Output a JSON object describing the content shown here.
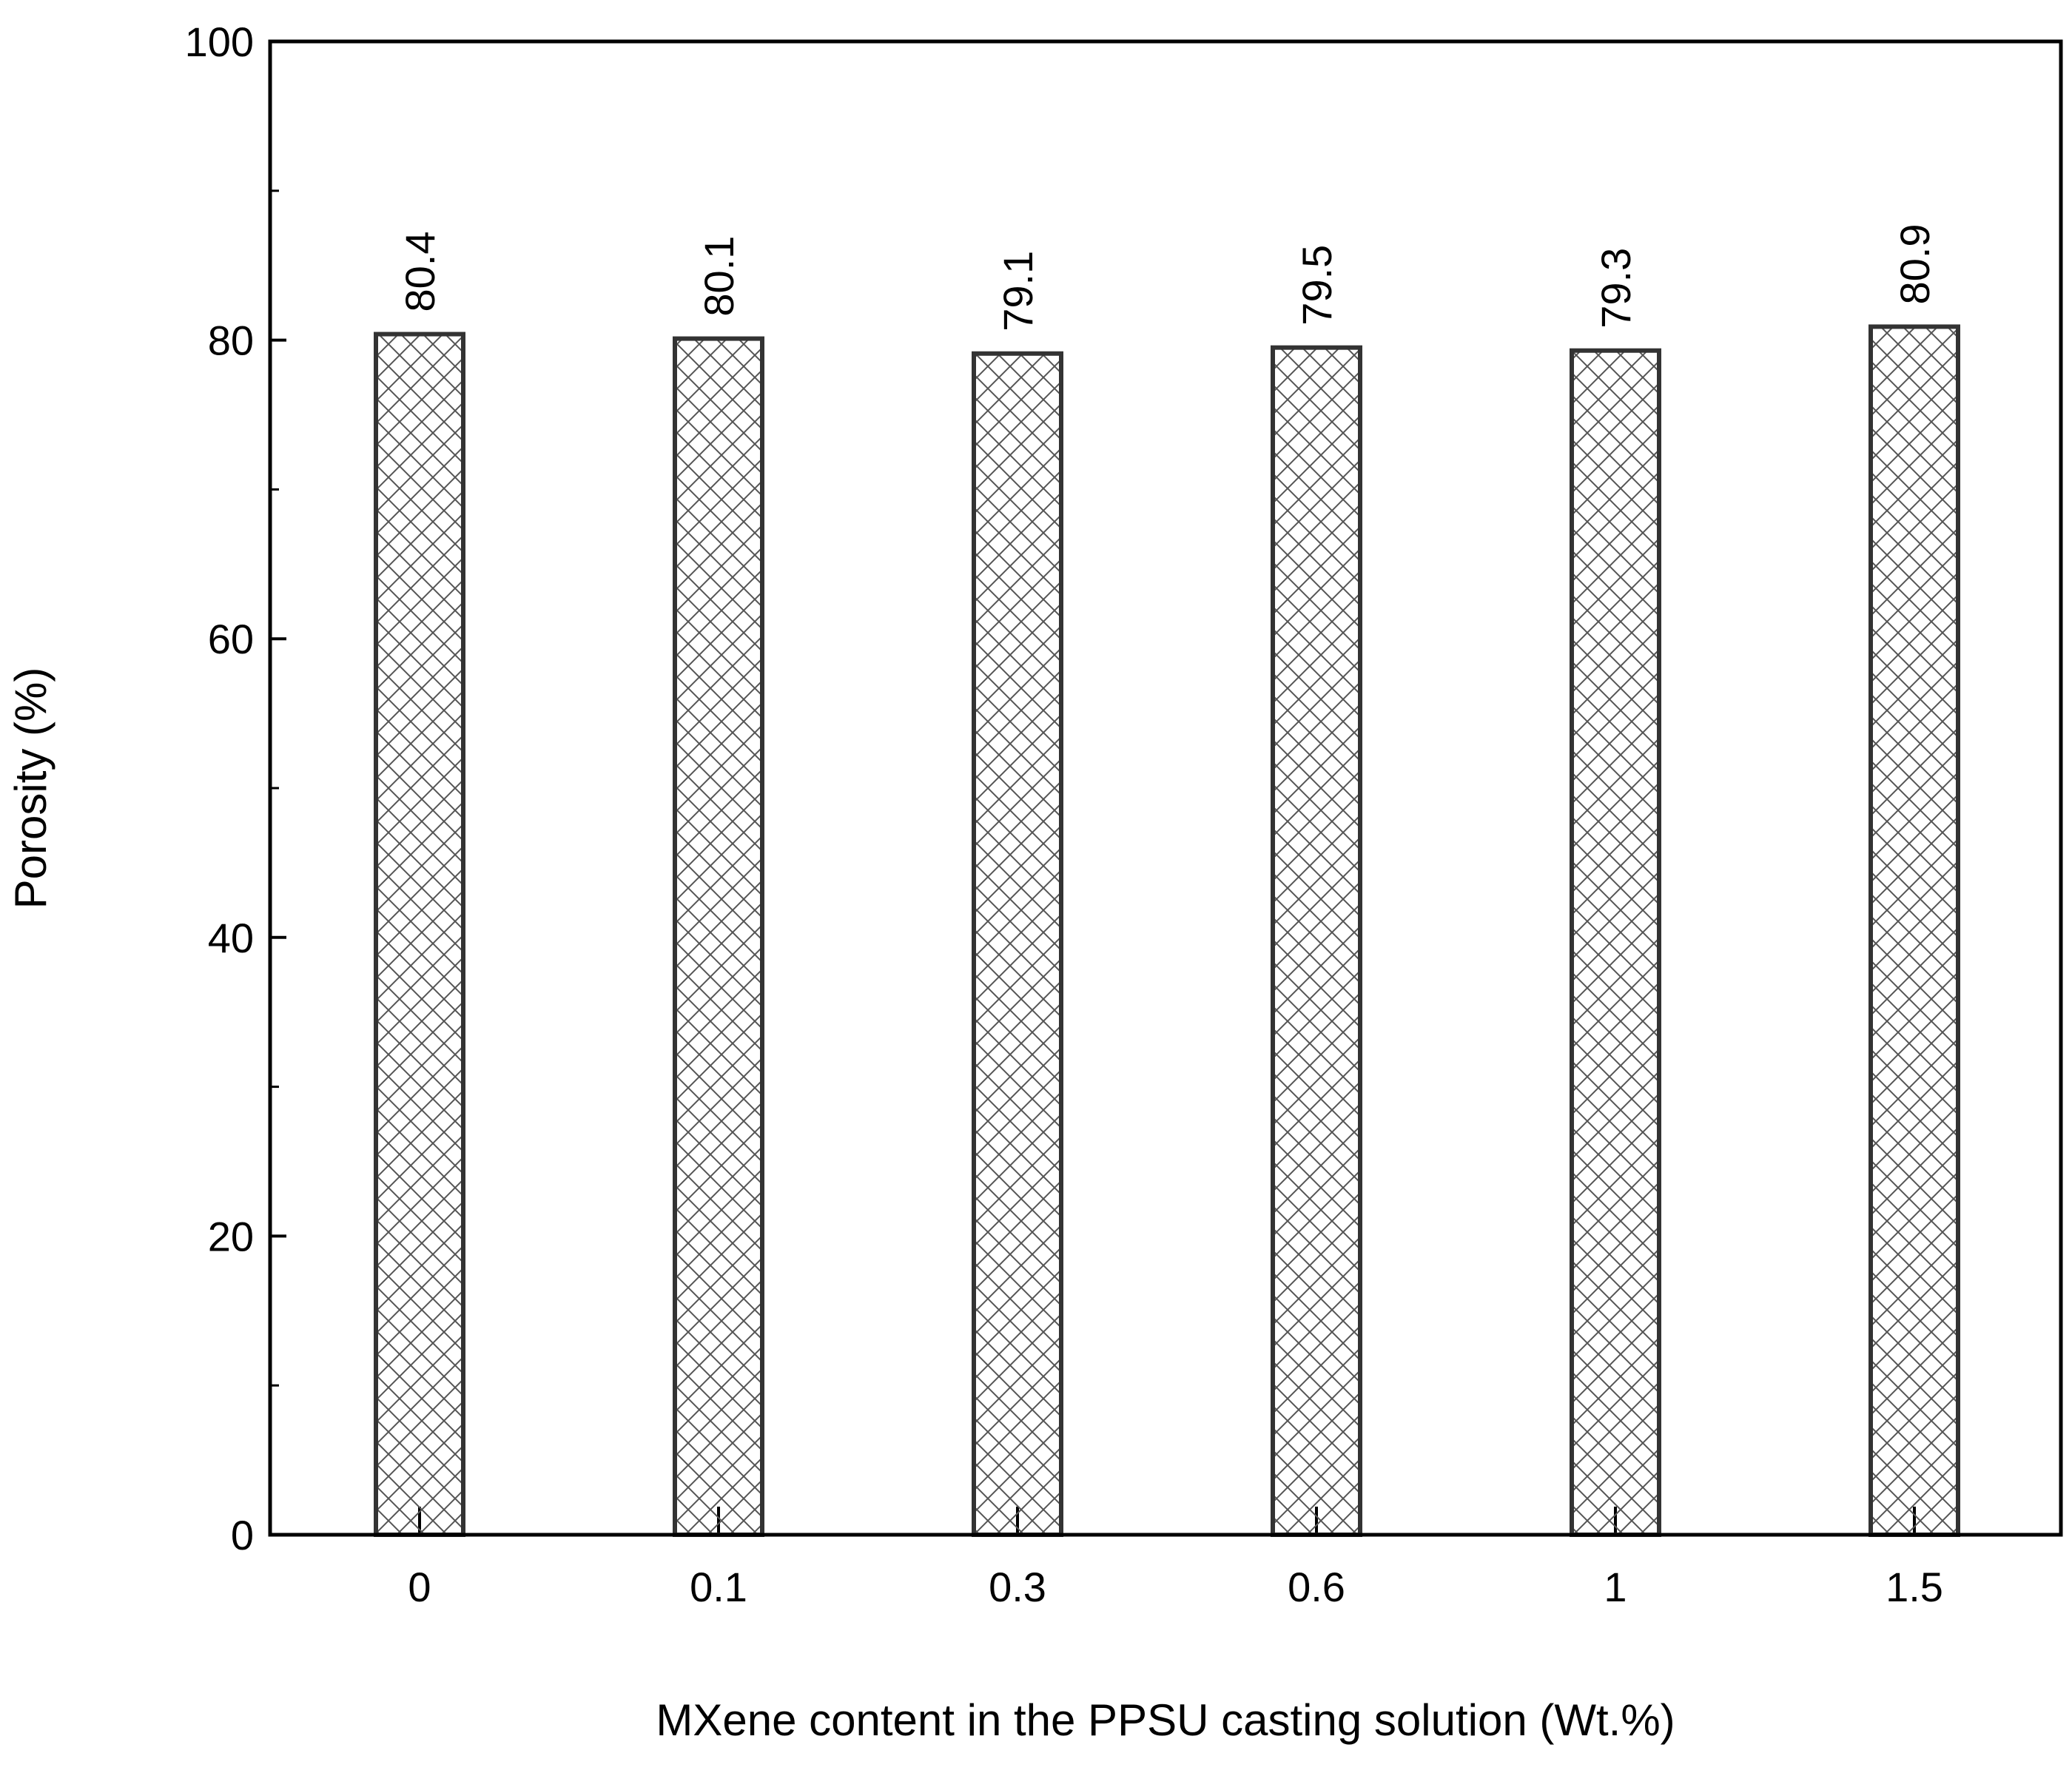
{
  "chart_data": {
    "type": "bar",
    "categories": [
      "0",
      "0.1",
      "0.3",
      "0.6",
      "1",
      "1.5"
    ],
    "values": [
      80.4,
      80.1,
      79.1,
      79.5,
      79.3,
      80.9
    ],
    "data_labels": [
      "80.4",
      "80.1",
      "79.1",
      "79.5",
      "79.3",
      "80.9"
    ],
    "xlabel": "MXene content in the PPSU casting solution (Wt.%)",
    "ylabel": "Porosity (%)",
    "ylim": [
      0,
      100
    ],
    "yticks": [
      "0",
      "20",
      "40",
      "60",
      "80",
      "100"
    ],
    "grid": false,
    "legend": "none",
    "bar_fill_pattern": "cross-hatch",
    "colors": {
      "bar_stroke": "#333333",
      "hatch": "#555555",
      "axis": "#000000"
    }
  }
}
